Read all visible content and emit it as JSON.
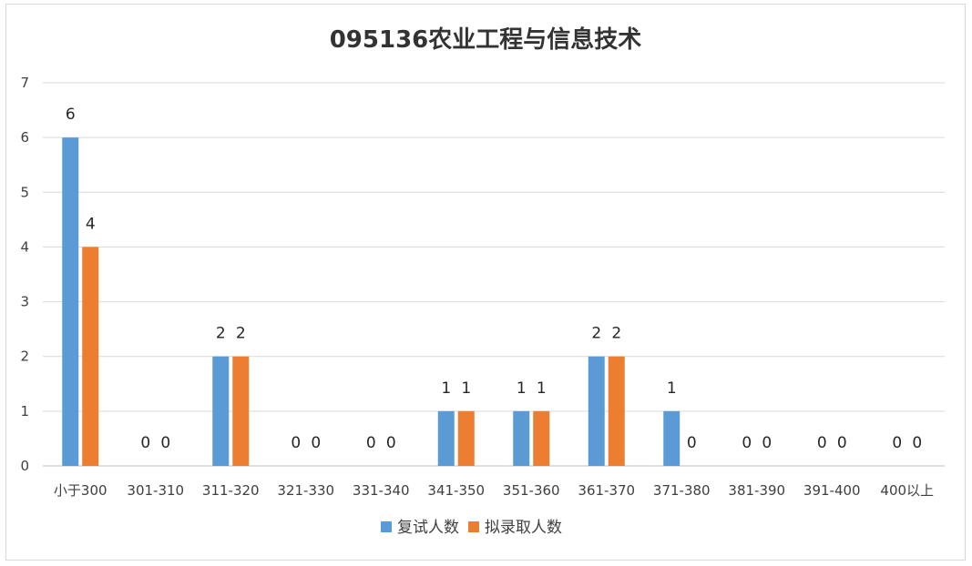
{
  "chart_data": {
    "type": "bar",
    "title": "095136农业工程与信息技术",
    "categories": [
      "小于300",
      "301-310",
      "311-320",
      "321-330",
      "331-340",
      "341-350",
      "351-360",
      "361-370",
      "371-380",
      "381-390",
      "391-400",
      "400以上"
    ],
    "series": [
      {
        "name": "复试人数",
        "color": "#5b9bd5",
        "values": [
          6,
          0,
          2,
          0,
          0,
          1,
          1,
          2,
          1,
          0,
          0,
          0
        ]
      },
      {
        "name": "拟录取人数",
        "color": "#ed7d31",
        "values": [
          4,
          0,
          2,
          0,
          0,
          1,
          1,
          2,
          0,
          0,
          0,
          0
        ]
      }
    ],
    "ylim": [
      0,
      7
    ],
    "yticks": [
      0,
      1,
      2,
      3,
      4,
      5,
      6,
      7
    ],
    "grid": true,
    "legend_position": "bottom",
    "data_labels": true
  }
}
